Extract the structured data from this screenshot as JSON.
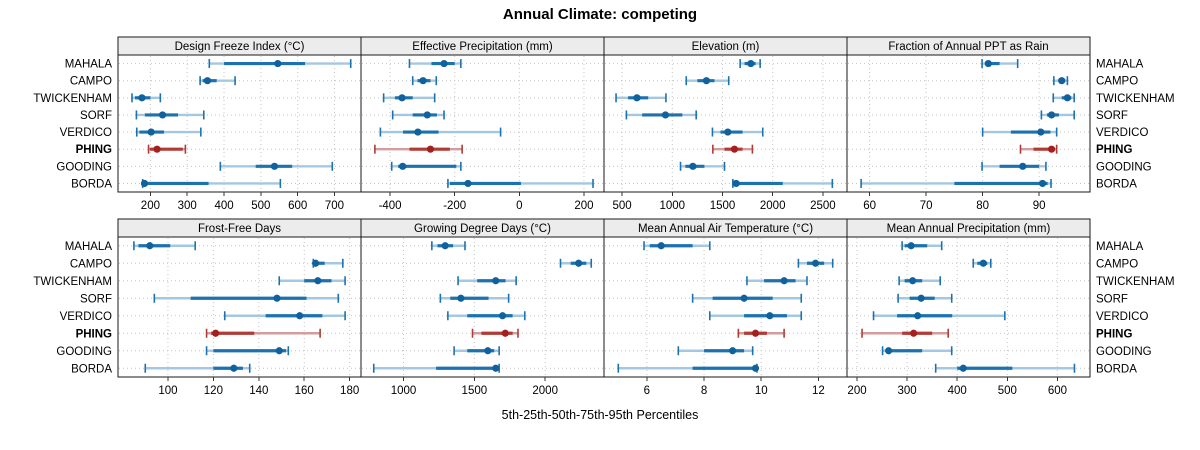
{
  "title": "Annual Climate: competing",
  "xlabel": "5th-25th-50th-75th-95th Percentiles",
  "sites": [
    "MAHALA",
    "CAMPO",
    "TWICKENHAM",
    "SORF",
    "VERDICO",
    "PHING",
    "GOODING",
    "BORDA"
  ],
  "highlight_site": "PHING",
  "colors": {
    "normal_light": "#a4c8e1",
    "normal_dark": "#1b72af",
    "normal_dot": "#10619c",
    "highlight_light": "#d49c9c",
    "highlight_dark": "#b23a34",
    "highlight_dot": "#a51f1f",
    "strip_bg": "#ececec",
    "panel_border": "#1a1a1a",
    "grid": "#c4c4c4",
    "tick": "#333333",
    "text": "#000000"
  },
  "chart_data": {
    "type": "dotplot-percentiles",
    "title": "Annual Climate: competing",
    "xlabel": "5th-25th-50th-75th-95th Percentiles",
    "percentile_labels": [
      "5th",
      "25th",
      "50th",
      "75th",
      "95th"
    ],
    "layout": {
      "rows": 2,
      "cols": 4,
      "grid": "dotted",
      "legend": "none"
    },
    "panels": [
      {
        "title": "Design Freeze Index (°C)",
        "row": 0,
        "col": 0,
        "xlim": [
          112,
          772
        ],
        "ticks": [
          200,
          300,
          400,
          500,
          600,
          700
        ],
        "values": {
          "MAHALA": [
            360,
            400,
            546,
            620,
            744
          ],
          "CAMPO": [
            335,
            342,
            355,
            380,
            430
          ],
          "TWICKENHAM": [
            150,
            158,
            177,
            200,
            227
          ],
          "SORF": [
            162,
            185,
            233,
            275,
            345
          ],
          "VERDICO": [
            163,
            170,
            202,
            237,
            337
          ],
          "PHING": [
            195,
            199,
            218,
            288,
            295
          ],
          "GOODING": [
            390,
            486,
            537,
            585,
            694
          ],
          "BORDA": [
            179,
            181,
            184,
            358,
            553
          ]
        }
      },
      {
        "title": "Effective Precipitation (mm)",
        "row": 0,
        "col": 1,
        "xlim": [
          -490,
          262
        ],
        "ticks": [
          -400,
          -200,
          0,
          200
        ],
        "values": {
          "MAHALA": [
            -340,
            -272,
            -233,
            -200,
            -181
          ],
          "CAMPO": [
            -330,
            -315,
            -298,
            -275,
            -257
          ],
          "TWICKENHAM": [
            -420,
            -385,
            -363,
            -330,
            -262
          ],
          "SORF": [
            -392,
            -330,
            -285,
            -255,
            -233
          ],
          "VERDICO": [
            -430,
            -360,
            -314,
            -250,
            -58
          ],
          "PHING": [
            -447,
            -340,
            -275,
            -215,
            -177
          ],
          "GOODING": [
            -395,
            -375,
            -361,
            -195,
            -181
          ],
          "BORDA": [
            -221,
            -215,
            -159,
            5,
            228
          ]
        }
      },
      {
        "title": "Elevation (m)",
        "row": 0,
        "col": 2,
        "xlim": [
          320,
          2740
        ],
        "ticks": [
          500,
          1000,
          1500,
          2000,
          2500
        ],
        "values": {
          "MAHALA": [
            1676,
            1720,
            1782,
            1830,
            1875
          ],
          "CAMPO": [
            1139,
            1250,
            1340,
            1420,
            1562
          ],
          "TWICKENHAM": [
            440,
            560,
            648,
            760,
            937
          ],
          "SORF": [
            543,
            700,
            932,
            1100,
            1238
          ],
          "VERDICO": [
            1400,
            1480,
            1553,
            1700,
            1901
          ],
          "PHING": [
            1404,
            1520,
            1619,
            1700,
            1798
          ],
          "GOODING": [
            1082,
            1130,
            1205,
            1320,
            1520
          ],
          "BORDA": [
            1603,
            1620,
            1636,
            2100,
            2594
          ]
        }
      },
      {
        "title": "Fraction of Annual PPT as Rain",
        "row": 0,
        "col": 3,
        "xlim": [
          56,
          99
        ],
        "ticks": [
          60,
          70,
          80,
          90
        ],
        "values": {
          "MAHALA": [
            79.9,
            80.5,
            81.0,
            83.0,
            86.2
          ],
          "CAMPO": [
            92.6,
            93.4,
            94.0,
            94.6,
            95.0
          ],
          "TWICKENHAM": [
            92.5,
            94.0,
            95.0,
            95.7,
            96.2
          ],
          "SORF": [
            90.4,
            91.4,
            92.2,
            93.5,
            96.2
          ],
          "VERDICO": [
            80.0,
            85.0,
            90.3,
            92.0,
            93.1
          ],
          "PHING": [
            86.7,
            89.0,
            92.2,
            92.8,
            93.1
          ],
          "GOODING": [
            79.9,
            83.0,
            87.1,
            90.0,
            91.2
          ],
          "BORDA": [
            58.5,
            75.0,
            90.6,
            91.5,
            92.1
          ]
        }
      },
      {
        "title": "Frost-Free Days",
        "row": 1,
        "col": 0,
        "xlim": [
          78,
          185
        ],
        "ticks": [
          100,
          120,
          140,
          160,
          180
        ],
        "values": {
          "MAHALA": [
            85,
            87,
            92,
            101,
            112
          ],
          "CAMPO": [
            164,
            164.5,
            165,
            169,
            177
          ],
          "TWICKENHAM": [
            149,
            160,
            166,
            172,
            178
          ],
          "SORF": [
            94,
            110,
            148,
            161,
            175
          ],
          "VERDICO": [
            125,
            143,
            158,
            168,
            178
          ],
          "PHING": [
            117,
            119,
            121,
            138,
            167
          ],
          "GOODING": [
            117,
            120,
            149,
            152,
            153
          ],
          "BORDA": [
            90,
            120,
            129,
            133,
            136
          ]
        }
      },
      {
        "title": "Growing Degree Days (°C)",
        "row": 1,
        "col": 1,
        "xlim": [
          700,
          2415
        ],
        "ticks": [
          1000,
          1500,
          2000
        ],
        "values": {
          "MAHALA": [
            1200,
            1240,
            1294,
            1350,
            1434
          ],
          "CAMPO": [
            2108,
            2180,
            2236,
            2290,
            2325
          ],
          "TWICKENHAM": [
            1385,
            1520,
            1651,
            1720,
            1795
          ],
          "SORF": [
            1260,
            1330,
            1405,
            1600,
            1742
          ],
          "VERDICO": [
            1313,
            1450,
            1699,
            1770,
            1856
          ],
          "PHING": [
            1487,
            1550,
            1718,
            1770,
            1808
          ],
          "GOODING": [
            1357,
            1450,
            1595,
            1640,
            1675
          ],
          "BORDA": [
            790,
            1230,
            1651,
            1670,
            1675
          ]
        }
      },
      {
        "title": "Mean Annual Air Temperature (°C)",
        "row": 1,
        "col": 2,
        "xlim": [
          4.5,
          13
        ],
        "ticks": [
          6,
          8,
          10,
          12
        ],
        "values": {
          "MAHALA": [
            5.9,
            6.1,
            6.5,
            7.6,
            8.2
          ],
          "CAMPO": [
            11.3,
            11.6,
            11.9,
            12.2,
            12.5
          ],
          "TWICKENHAM": [
            9.5,
            10.1,
            10.8,
            11.2,
            11.6
          ],
          "SORF": [
            7.6,
            8.3,
            9.4,
            10.4,
            11.4
          ],
          "VERDICO": [
            8.2,
            9.4,
            10.3,
            10.9,
            11.4
          ],
          "PHING": [
            9.2,
            9.4,
            9.8,
            10.2,
            10.8
          ],
          "GOODING": [
            7.1,
            8.0,
            9.0,
            9.4,
            9.7
          ],
          "BORDA": [
            5.0,
            7.6,
            9.8,
            9.82,
            9.85
          ]
        }
      },
      {
        "title": "Mean Annual Precipitation (mm)",
        "row": 1,
        "col": 3,
        "xlim": [
          180,
          665
        ],
        "ticks": [
          200,
          300,
          400,
          500,
          600
        ],
        "values": {
          "MAHALA": [
            290,
            295,
            308,
            340,
            369
          ],
          "CAMPO": [
            432,
            440,
            452,
            460,
            467
          ],
          "TWICKENHAM": [
            284,
            295,
            311,
            330,
            366
          ],
          "SORF": [
            282,
            305,
            328,
            355,
            389
          ],
          "VERDICO": [
            233,
            280,
            321,
            390,
            495
          ],
          "PHING": [
            210,
            290,
            313,
            350,
            382
          ],
          "GOODING": [
            251,
            258,
            263,
            330,
            389
          ],
          "BORDA": [
            357,
            400,
            412,
            510,
            634
          ]
        }
      }
    ]
  }
}
